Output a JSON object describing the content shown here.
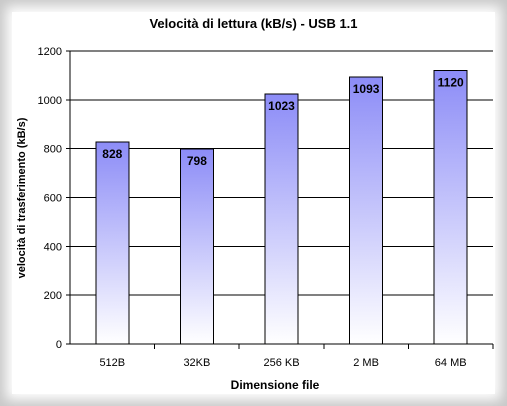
{
  "chart_data": {
    "type": "bar",
    "title": "Velocità di lettura (kB/s) - USB 1.1",
    "xlabel": "Dimensione file",
    "ylabel": "velocità di trasferimento (kB/s)",
    "categories": [
      "512B",
      "32KB",
      "256 KB",
      "2 MB",
      "64 MB"
    ],
    "values": [
      828,
      798,
      1023,
      1093,
      1120
    ],
    "data_labels": [
      "828",
      "798",
      "1023",
      "1093",
      "1120"
    ],
    "ylim": [
      0,
      1200
    ],
    "yticks": [
      0,
      200,
      400,
      600,
      800,
      1000,
      1200
    ],
    "grid": true,
    "legend": "none",
    "colors": {
      "bar_top": "#8c8cf7",
      "bar_bottom": "#ffffff",
      "bar_border": "#000000",
      "gridline": "#000000",
      "frame_shadow": "#9a9a9a"
    }
  }
}
